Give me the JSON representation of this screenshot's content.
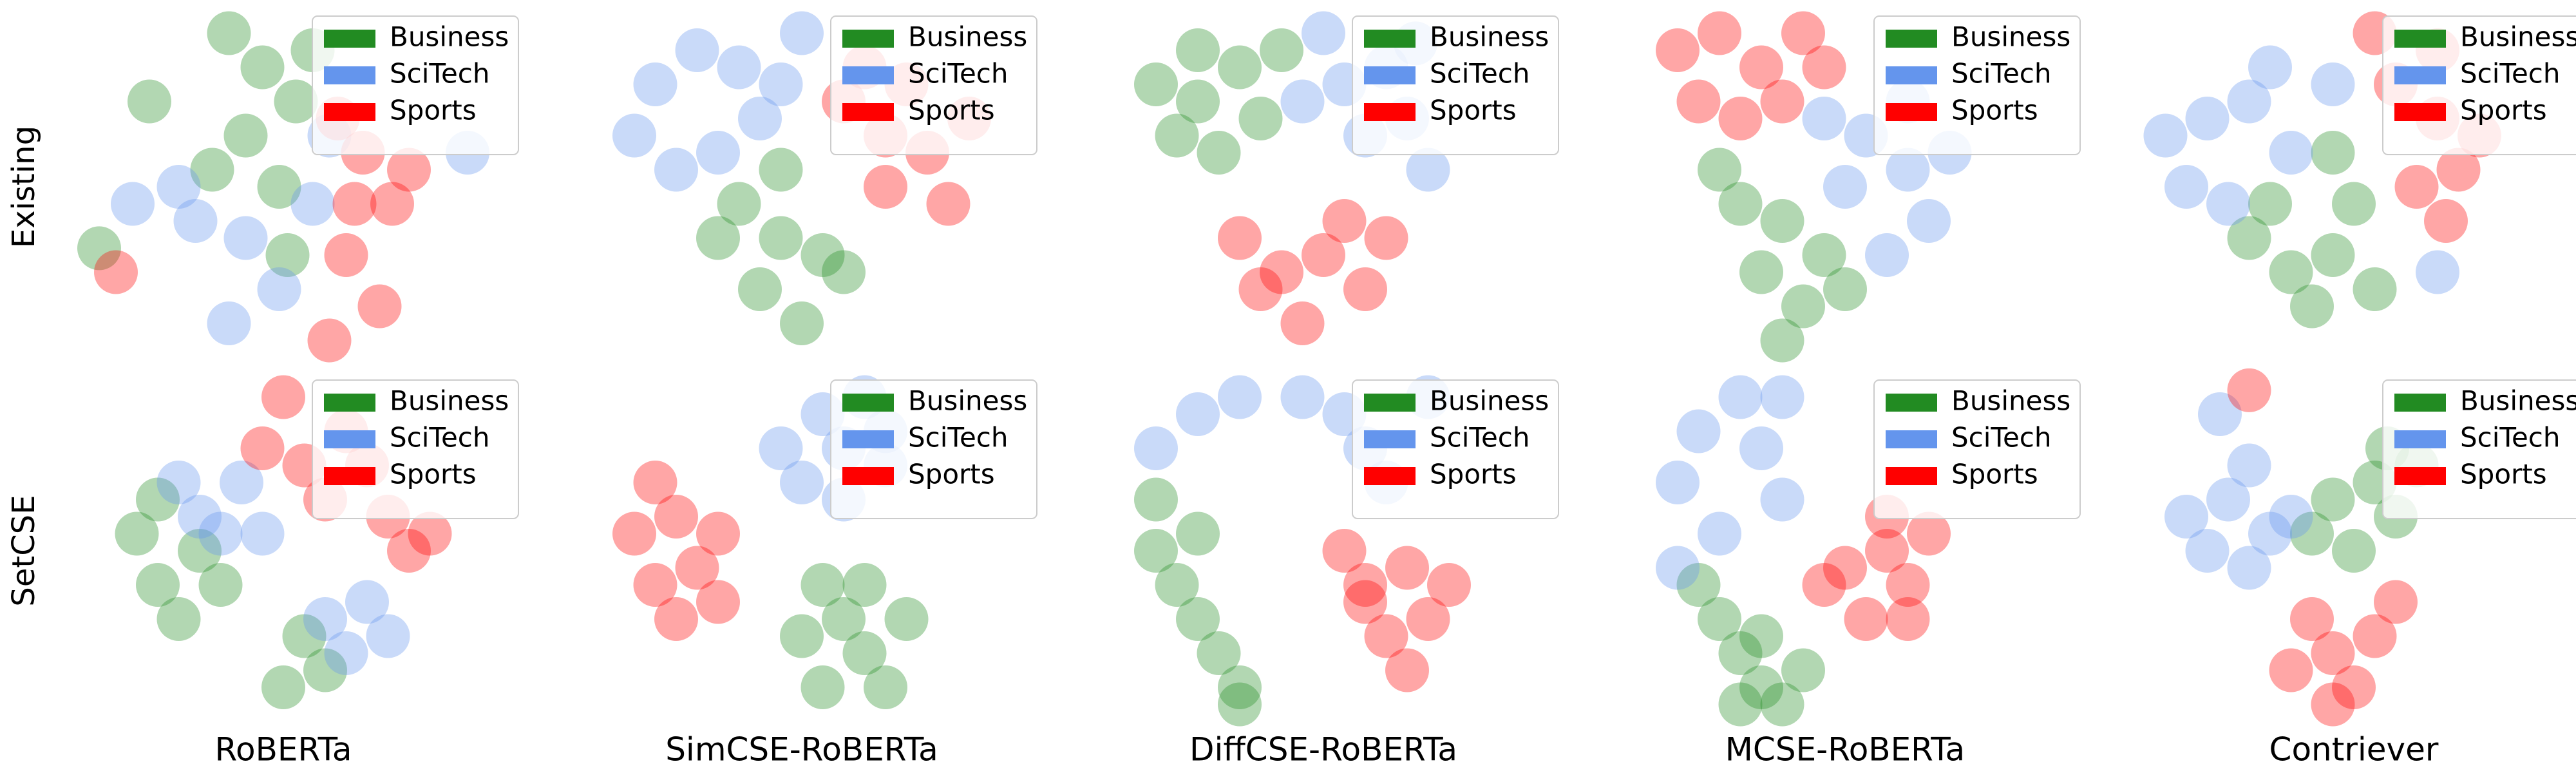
{
  "row_labels": [
    "Existing",
    "SetCSE"
  ],
  "column_labels": [
    "RoBERTa",
    "SimCSE-RoBERTa",
    "DiffCSE-RoBERTa",
    "MCSE-RoBERTa",
    "Contriever"
  ],
  "chart_data": [
    {
      "type": "scatter",
      "xlim": [
        0,
        100
      ],
      "ylim": [
        0,
        100
      ],
      "legend": "upper right",
      "series": [
        {
          "name": "Business",
          "color": "#228b22",
          "x": [
            37,
            45,
            53,
            41,
            33,
            57,
            49,
            6,
            18,
            51
          ],
          "y": [
            95,
            85,
            75,
            65,
            55,
            90,
            50,
            32,
            75,
            30
          ]
        },
        {
          "name": "SciTech",
          "color": "#6495ed",
          "x": [
            29,
            41,
            49,
            37,
            25,
            57,
            14,
            61,
            94
          ],
          "y": [
            40,
            35,
            20,
            10,
            50,
            45,
            45,
            65,
            60
          ]
        },
        {
          "name": "Sports",
          "color": "#ff0000",
          "x": [
            69,
            76,
            65,
            73,
            61,
            80,
            67,
            10,
            63
          ],
          "y": [
            60,
            45,
            30,
            15,
            5,
            55,
            45,
            25,
            70
          ]
        }
      ]
    },
    {
      "type": "scatter",
      "xlim": [
        0,
        100
      ],
      "ylim": [
        0,
        100
      ],
      "legend": "upper right",
      "series": [
        {
          "name": "Business",
          "color": "#228b22",
          "x": [
            35,
            45,
            40,
            50,
            55,
            30,
            45,
            60
          ],
          "y": [
            45,
            35,
            20,
            10,
            30,
            35,
            55,
            25
          ]
        },
        {
          "name": "SciTech",
          "color": "#6495ed",
          "x": [
            15,
            25,
            35,
            10,
            20,
            40,
            30,
            50,
            45
          ],
          "y": [
            80,
            90,
            85,
            65,
            55,
            70,
            60,
            95,
            80
          ]
        },
        {
          "name": "Sports",
          "color": "#ff0000",
          "x": [
            60,
            70,
            75,
            80,
            65,
            90,
            70,
            85
          ],
          "y": [
            75,
            65,
            80,
            60,
            85,
            70,
            50,
            45
          ]
        }
      ]
    },
    {
      "type": "scatter",
      "xlim": [
        0,
        100
      ],
      "ylim": [
        0,
        100
      ],
      "legend": "upper right",
      "series": [
        {
          "name": "Business",
          "color": "#228b22",
          "x": [
            10,
            20,
            30,
            15,
            25,
            35,
            40,
            20
          ],
          "y": [
            80,
            75,
            85,
            65,
            60,
            70,
            90,
            90
          ]
        },
        {
          "name": "SciTech",
          "color": "#6495ed",
          "x": [
            50,
            55,
            65,
            70,
            60,
            75,
            45,
            72
          ],
          "y": [
            95,
            80,
            85,
            70,
            65,
            55,
            75,
            92
          ]
        },
        {
          "name": "Sports",
          "color": "#ff0000",
          "x": [
            30,
            40,
            50,
            60,
            55,
            45,
            65,
            35
          ],
          "y": [
            35,
            25,
            30,
            20,
            40,
            10,
            35,
            20
          ]
        }
      ]
    },
    {
      "type": "scatter",
      "xlim": [
        0,
        100
      ],
      "ylim": [
        0,
        100
      ],
      "legend": "upper right",
      "series": [
        {
          "name": "Business",
          "color": "#228b22",
          "x": [
            25,
            35,
            30,
            40,
            35,
            45,
            20,
            50
          ],
          "y": [
            45,
            40,
            25,
            15,
            5,
            30,
            55,
            20
          ]
        },
        {
          "name": "SciTech",
          "color": "#6495ed",
          "x": [
            55,
            65,
            70,
            60,
            50,
            75,
            45,
            65
          ],
          "y": [
            65,
            55,
            40,
            30,
            50,
            60,
            70,
            75
          ]
        },
        {
          "name": "Sports",
          "color": "#ff0000",
          "x": [
            10,
            20,
            30,
            15,
            25,
            40,
            35,
            45
          ],
          "y": [
            90,
            95,
            85,
            75,
            70,
            95,
            75,
            85
          ]
        }
      ]
    },
    {
      "type": "scatter",
      "xlim": [
        0,
        100
      ],
      "ylim": [
        0,
        100
      ],
      "legend": "upper right",
      "series": [
        {
          "name": "Business",
          "color": "#228b22",
          "x": [
            25,
            35,
            45,
            40,
            30,
            50,
            55,
            45
          ],
          "y": [
            35,
            25,
            30,
            15,
            45,
            45,
            20,
            60
          ]
        },
        {
          "name": "SciTech",
          "color": "#6495ed",
          "x": [
            5,
            15,
            25,
            10,
            20,
            35,
            30,
            45,
            70
          ],
          "y": [
            65,
            70,
            75,
            50,
            45,
            60,
            85,
            80,
            25
          ]
        },
        {
          "name": "Sports",
          "color": "#ff0000",
          "x": [
            55,
            60,
            70,
            75,
            65,
            80,
            72,
            70
          ],
          "y": [
            95,
            80,
            70,
            55,
            50,
            65,
            40,
            90
          ]
        }
      ]
    },
    {
      "type": "scatter",
      "xlim": [
        0,
        100
      ],
      "ylim": [
        0,
        100
      ],
      "legend": "upper right",
      "series": [
        {
          "name": "Business",
          "color": "#228b22",
          "x": [
            15,
            20,
            25,
            30,
            20,
            50,
            60,
            55,
            35
          ],
          "y": [
            55,
            40,
            30,
            50,
            65,
            10,
            15,
            25,
            40
          ]
        },
        {
          "name": "SciTech",
          "color": "#6495ed",
          "x": [
            25,
            30,
            40,
            35,
            60,
            70,
            75,
            65,
            45
          ],
          "y": [
            70,
            60,
            70,
            55,
            30,
            35,
            25,
            20,
            55
          ]
        },
        {
          "name": "Sports",
          "color": "#ff0000",
          "x": [
            50,
            45,
            55,
            65,
            75,
            80,
            60,
            70,
            85
          ],
          "y": [
            95,
            80,
            75,
            85,
            60,
            50,
            65,
            75,
            55
          ]
        }
      ]
    },
    {
      "type": "scatter",
      "xlim": [
        0,
        100
      ],
      "ylim": [
        0,
        100
      ],
      "legend": "upper right",
      "series": [
        {
          "name": "Business",
          "color": "#228b22",
          "x": [
            55,
            60,
            65,
            70,
            50,
            65,
            75,
            55
          ],
          "y": [
            40,
            30,
            20,
            10,
            25,
            40,
            30,
            10
          ]
        },
        {
          "name": "SciTech",
          "color": "#6495ed",
          "x": [
            55,
            60,
            65,
            70,
            50,
            60,
            70,
            45
          ],
          "y": [
            90,
            80,
            95,
            85,
            70,
            65,
            75,
            80
          ]
        },
        {
          "name": "Sports",
          "color": "#ff0000",
          "x": [
            10,
            15,
            20,
            25,
            30,
            15,
            30,
            20
          ],
          "y": [
            55,
            40,
            60,
            45,
            55,
            70,
            35,
            30
          ]
        }
      ]
    },
    {
      "type": "scatter",
      "xlim": [
        0,
        100
      ],
      "ylim": [
        0,
        100
      ],
      "legend": "upper right",
      "series": [
        {
          "name": "Business",
          "color": "#228b22",
          "x": [
            10,
            15,
            20,
            25,
            30,
            10,
            20,
            30
          ],
          "y": [
            50,
            40,
            30,
            20,
            10,
            65,
            55,
            5
          ]
        },
        {
          "name": "SciTech",
          "color": "#6495ed",
          "x": [
            10,
            20,
            30,
            45,
            55,
            60,
            65,
            75
          ],
          "y": [
            80,
            90,
            95,
            95,
            90,
            80,
            70,
            95
          ]
        },
        {
          "name": "Sports",
          "color": "#ff0000",
          "x": [
            60,
            70,
            75,
            65,
            55,
            80,
            70,
            60
          ],
          "y": [
            40,
            45,
            30,
            25,
            50,
            40,
            15,
            35
          ]
        }
      ]
    },
    {
      "type": "scatter",
      "xlim": [
        0,
        100
      ],
      "ylim": [
        0,
        100
      ],
      "legend": "upper right",
      "series": [
        {
          "name": "Business",
          "color": "#228b22",
          "x": [
            20,
            25,
            30,
            35,
            15,
            30,
            40,
            25
          ],
          "y": [
            30,
            20,
            10,
            5,
            40,
            25,
            15,
            5
          ]
        },
        {
          "name": "SciTech",
          "color": "#6495ed",
          "x": [
            10,
            15,
            25,
            35,
            20,
            10,
            30,
            35
          ],
          "y": [
            70,
            85,
            95,
            95,
            55,
            45,
            80,
            65
          ]
        },
        {
          "name": "Sports",
          "color": "#ff0000",
          "x": [
            50,
            60,
            65,
            55,
            70,
            60,
            45,
            65
          ],
          "y": [
            45,
            50,
            40,
            30,
            55,
            60,
            40,
            30
          ]
        }
      ]
    },
    {
      "type": "scatter",
      "xlim": [
        0,
        100
      ],
      "ylim": [
        0,
        100
      ],
      "legend": "upper right",
      "series": [
        {
          "name": "Business",
          "color": "#228b22",
          "x": [
            45,
            55,
            60,
            50,
            65,
            40,
            58
          ],
          "y": [
            65,
            70,
            60,
            50,
            75,
            55,
            80
          ]
        },
        {
          "name": "SciTech",
          "color": "#6495ed",
          "x": [
            10,
            20,
            30,
            25,
            35,
            15,
            18,
            25
          ],
          "y": [
            60,
            65,
            55,
            45,
            60,
            50,
            90,
            75
          ]
        },
        {
          "name": "Sports",
          "color": "#ff0000",
          "x": [
            25,
            40,
            45,
            55,
            50,
            60,
            35,
            45
          ],
          "y": [
            97,
            30,
            20,
            25,
            10,
            35,
            15,
            5
          ]
        }
      ]
    }
  ]
}
